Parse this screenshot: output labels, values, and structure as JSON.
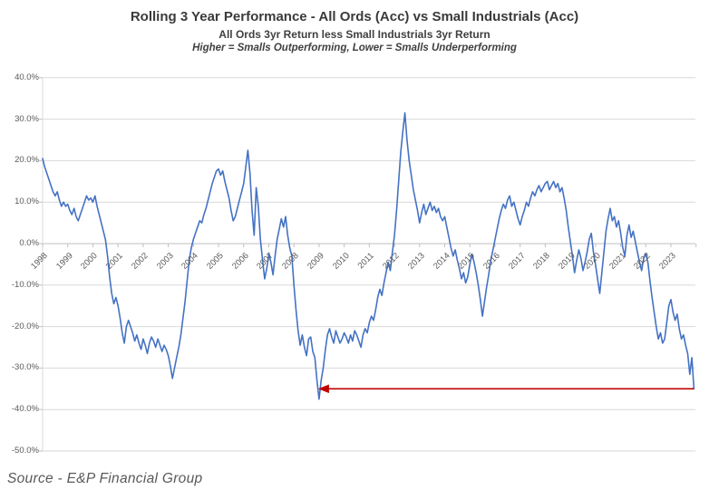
{
  "header": {
    "title": "Rolling 3 Year Performance - All Ords (Acc) vs Small Industrials (Acc)",
    "subtitle": "All Ords 3yr Return less Small Industrials 3yr Return",
    "note": "Higher = Smalls Outperforming, Lower = Smalls Underperforming"
  },
  "footer": {
    "source": "Source - E&P Financial Group"
  },
  "colors": {
    "line": "#4472C4",
    "arrow": "#C00000",
    "gridline": "#D9D9D9",
    "axis": "#BFBFBF",
    "title_text": "#3A3A3A",
    "label_text": "#595959"
  },
  "chart_data": {
    "type": "line",
    "title": "Rolling 3 Year Performance - All Ords (Acc) vs Small Industrials (Acc)",
    "subtitle": "All Ords 3yr Return less Small Industrials 3yr Return",
    "annotation_note": "Higher = Smalls Outperforming, Lower = Smalls Underperforming",
    "grid": true,
    "legend": "none",
    "point_frequency": "monthly",
    "categories": [
      "1998",
      "1999",
      "2000",
      "2001",
      "2002",
      "2003",
      "2004",
      "2005",
      "2006",
      "2007",
      "2008",
      "2009",
      "2010",
      "2011",
      "2012",
      "2013",
      "2014",
      "2015",
      "2016",
      "2017",
      "2018",
      "2019",
      "2020",
      "2021",
      "2022",
      "2023"
    ],
    "ylim": [
      -50,
      40
    ],
    "y_axis": {
      "unit": "%",
      "ticks": [
        40,
        30,
        20,
        10,
        0,
        -10,
        -20,
        -30,
        -40,
        -50
      ],
      "tick_labels": [
        "40.0%",
        "30.0%",
        "20.0%",
        "10.0%",
        "0.0%",
        "-10.0%",
        "-20.0%",
        "-30.0%",
        "-40.0%",
        "-50.0%"
      ]
    },
    "series": [
      {
        "name": "All Ords 3yr Return less Small Industrials 3yr Return",
        "color": "#4472C4",
        "values": [
          20.5,
          18.5,
          17,
          15.5,
          14,
          12.5,
          11.5,
          12.5,
          10.5,
          9,
          10,
          9,
          9.5,
          8,
          7,
          8.5,
          6.5,
          5.5,
          7,
          8.5,
          10,
          11.5,
          10.5,
          11,
          10,
          11.5,
          9,
          7,
          5,
          3,
          1,
          -3,
          -8,
          -12,
          -14.5,
          -13,
          -15,
          -18,
          -21.5,
          -24,
          -20,
          -18.5,
          -20,
          -21.5,
          -23.5,
          -22,
          -24,
          -25.5,
          -23,
          -24.5,
          -26.5,
          -24,
          -22.5,
          -23.5,
          -25,
          -23,
          -24.5,
          -26,
          -24.5,
          -25.5,
          -27,
          -29.5,
          -32.5,
          -30,
          -27.5,
          -25,
          -22,
          -18,
          -14,
          -9,
          -4,
          -1,
          1,
          2.5,
          4,
          5.5,
          5,
          7,
          8.5,
          10.5,
          12.5,
          14.5,
          16,
          17.5,
          18,
          16.5,
          17.5,
          15,
          13,
          11,
          8,
          5.5,
          6.5,
          8.5,
          10.5,
          12.5,
          14.5,
          18.5,
          22.5,
          17,
          8,
          2,
          13.5,
          9,
          1,
          -4,
          -8.5,
          -6,
          -2.5,
          -4.5,
          -7.5,
          -3,
          1,
          3.5,
          6,
          4,
          6.5,
          2,
          -1,
          -3,
          -10,
          -16,
          -21,
          -24.5,
          -22,
          -25,
          -27,
          -23,
          -22.5,
          -26,
          -27.5,
          -33,
          -37.5,
          -33,
          -30,
          -25.5,
          -22,
          -20.5,
          -22.5,
          -24,
          -21,
          -22.5,
          -24,
          -23,
          -21.5,
          -22.5,
          -24,
          -22,
          -23.5,
          -21,
          -22,
          -23.5,
          -25,
          -22,
          -20.5,
          -21.5,
          -19,
          -17.5,
          -18.5,
          -16,
          -13,
          -11,
          -12.5,
          -9.5,
          -7,
          -4.5,
          -6.5,
          -2,
          2,
          8,
          15,
          22,
          27,
          31.5,
          25,
          20,
          16.5,
          13,
          10.5,
          8,
          5,
          7.5,
          9.5,
          7,
          8.5,
          10,
          8,
          9,
          7.5,
          8.5,
          6.5,
          5.5,
          6.5,
          4,
          1.5,
          -1,
          -3,
          -1.5,
          -4,
          -6,
          -8.5,
          -7,
          -9.5,
          -8,
          -5,
          -2.5,
          -4.5,
          -7,
          -10,
          -13.5,
          -17.5,
          -14,
          -10.5,
          -7.5,
          -4,
          -1.5,
          1,
          3.5,
          6,
          8,
          9.5,
          8.5,
          10.5,
          11.5,
          9,
          10,
          8,
          6,
          4.5,
          6.5,
          8,
          10,
          9,
          11,
          12.5,
          11.5,
          13,
          14,
          12.5,
          13.5,
          14.5,
          15,
          13,
          14,
          15,
          13.5,
          14.5,
          12.5,
          13.5,
          11,
          8,
          4,
          0.5,
          -3,
          -7,
          -4,
          -1.5,
          -3.5,
          -6.5,
          -4.5,
          -2,
          1,
          2.5,
          -2,
          -5,
          -8.5,
          -12,
          -7,
          -2,
          3,
          6,
          8.5,
          5.5,
          6.5,
          4,
          5.5,
          2.5,
          -1,
          -3,
          2,
          4.5,
          1.5,
          3,
          0.5,
          -2,
          -4.5,
          -6.5,
          -3.5,
          -2.5,
          -4.5,
          -9,
          -13,
          -16.5,
          -20,
          -23,
          -21.5,
          -24,
          -23,
          -19,
          -15,
          -13.5,
          -16.5,
          -18.5,
          -17,
          -20.5,
          -23,
          -22,
          -24.5,
          -26.5,
          -31.5,
          -27.5,
          -35
        ]
      }
    ],
    "annotation": {
      "shape": "horizontal-arrow",
      "color": "#C00000",
      "y_value": -35,
      "from_month_index": 311,
      "to_month_index": 132,
      "points_direction": "left"
    }
  }
}
